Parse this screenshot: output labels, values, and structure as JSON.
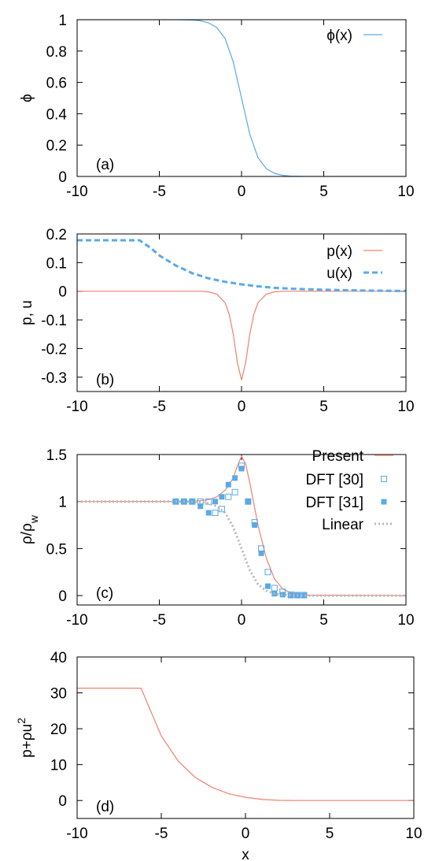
{
  "chart_data": [
    {
      "type": "line",
      "panel_label": "(a)",
      "xlabel": "",
      "ylabel": "ϕ",
      "xlim": [
        -10,
        10
      ],
      "ylim": [
        0,
        1
      ],
      "xticks": [
        "-10",
        "-5",
        "0",
        "5",
        "10"
      ],
      "yticks": [
        "0",
        "0.2",
        "0.4",
        "0.6",
        "0.8",
        "1"
      ],
      "legend_position": "top-right",
      "series": [
        {
          "name": "ϕ(x)",
          "style": "line",
          "color": "#5aaae6",
          "x": [
            -10,
            -4,
            -3,
            -2.5,
            -2,
            -1.5,
            -1,
            -0.5,
            0,
            0.5,
            1,
            1.5,
            2,
            2.5,
            3,
            4,
            10
          ],
          "y": [
            1,
            1,
            0.998,
            0.993,
            0.98,
            0.95,
            0.88,
            0.73,
            0.5,
            0.27,
            0.12,
            0.05,
            0.02,
            0.007,
            0.002,
            0,
            0
          ]
        }
      ]
    },
    {
      "type": "line",
      "panel_label": "(b)",
      "xlabel": "",
      "ylabel": "p, u",
      "xlim": [
        -10,
        10
      ],
      "ylim": [
        -0.35,
        0.2
      ],
      "xticks": [
        "-10",
        "-5",
        "0",
        "5",
        "10"
      ],
      "yticks": [
        "-0.3",
        "-0.2",
        "-0.1",
        "0",
        "0.1",
        "0.2"
      ],
      "legend_position": "top-right",
      "series": [
        {
          "name": "p(x)",
          "style": "line",
          "color": "#f08070",
          "x": [
            -10,
            -2.5,
            -2,
            -1.5,
            -1,
            -0.75,
            -0.5,
            -0.25,
            0,
            0.25,
            0.5,
            0.75,
            1,
            1.5,
            2,
            2.5,
            10
          ],
          "y": [
            0,
            0,
            -0.002,
            -0.01,
            -0.04,
            -0.08,
            -0.15,
            -0.25,
            -0.31,
            -0.25,
            -0.15,
            -0.08,
            -0.04,
            -0.01,
            -0.002,
            0,
            0
          ]
        },
        {
          "name": "u(x)",
          "style": "dashed",
          "color": "#5aaae6",
          "x": [
            -10,
            -6.2,
            -5.5,
            -5,
            -4,
            -3,
            -2,
            -1,
            0,
            1,
            2,
            3,
            4,
            6,
            8,
            10
          ],
          "y": [
            0.178,
            0.178,
            0.15,
            0.125,
            0.09,
            0.063,
            0.045,
            0.033,
            0.024,
            0.017,
            0.012,
            0.009,
            0.007,
            0.004,
            0.002,
            0.001
          ]
        }
      ]
    },
    {
      "type": "line",
      "panel_label": "(c)",
      "xlabel": "",
      "ylabel": "ρ/ρ",
      "ylabel_subscript": "w",
      "xlim": [
        -10,
        10
      ],
      "ylim": [
        -0.1,
        1.5
      ],
      "xticks": [
        "-10",
        "-5",
        "0",
        "5",
        "10"
      ],
      "yticks": [
        "0",
        "0.5",
        "1",
        "1.5"
      ],
      "legend_position": "top-right",
      "series": [
        {
          "name": "Present",
          "style": "line",
          "color": "#f08070",
          "x": [
            -10,
            -3,
            -2,
            -1.5,
            -1,
            -0.5,
            -0.25,
            0,
            0.25,
            0.5,
            1,
            1.5,
            2,
            2.5,
            3,
            4,
            10
          ],
          "y": [
            1,
            1,
            1.02,
            1.05,
            1.12,
            1.25,
            1.38,
            1.48,
            1.4,
            1.2,
            0.75,
            0.4,
            0.18,
            0.07,
            0.03,
            0.005,
            0
          ]
        },
        {
          "name": "DFT [30]",
          "style": "open-square",
          "color": "#5aaae6",
          "x": [
            -4,
            -3.5,
            -3,
            -2.5,
            -2,
            -1.6,
            -1.2,
            -0.8,
            -0.4,
            0,
            0.4,
            0.8,
            1.2,
            1.6,
            2,
            2.5,
            3,
            3.4,
            3.8
          ],
          "y": [
            1,
            1,
            1,
            1,
            1,
            0.88,
            0.92,
            1.05,
            1.1,
            1.38,
            1.0,
            0.78,
            0.5,
            0.25,
            0.08,
            0.04,
            0.01,
            0.005,
            0.005
          ]
        },
        {
          "name": "DFT [31]",
          "style": "filled-square",
          "color": "#5aaae6",
          "x": [
            -4,
            -3.5,
            -3,
            -2.5,
            -2,
            -1.6,
            -1.2,
            -0.8,
            -0.4,
            0,
            0.4,
            0.8,
            1.2,
            1.6,
            2,
            2.5,
            3,
            3.4,
            3.8
          ],
          "y": [
            1,
            1,
            1,
            0.95,
            0.88,
            1.0,
            1.05,
            1.18,
            1.25,
            1.35,
            1.0,
            0.75,
            0.45,
            0.1,
            0.02,
            0.01,
            0,
            0,
            0
          ]
        },
        {
          "name": "Linear",
          "style": "dotted",
          "color": "#b8b8b8",
          "x": [
            -10,
            -4,
            -3,
            -2.5,
            -2,
            -1.5,
            -1,
            -0.5,
            0,
            0.5,
            1,
            1.5,
            2,
            2.5,
            3,
            4,
            10
          ],
          "y": [
            1,
            1,
            0.998,
            0.993,
            0.98,
            0.95,
            0.88,
            0.73,
            0.5,
            0.27,
            0.12,
            0.05,
            0.02,
            0.007,
            0.002,
            0,
            0
          ]
        }
      ]
    },
    {
      "type": "line",
      "panel_label": "(d)",
      "xlabel": "x",
      "ylabel": "p+ρu",
      "ylabel_superscript": "2",
      "xlim": [
        -10,
        10
      ],
      "ylim": [
        -5,
        40
      ],
      "xticks": [
        "-10",
        "-5",
        "0",
        "5",
        "10"
      ],
      "yticks": [
        "0",
        "10",
        "20",
        "30",
        "40"
      ],
      "series": [
        {
          "style": "line",
          "color": "#f08070",
          "x": [
            -10,
            -6.2,
            -5.5,
            -5,
            -4,
            -3,
            -2,
            -1,
            0,
            1,
            2,
            3,
            4,
            6,
            8,
            10
          ],
          "y": [
            31.3,
            31.3,
            23.5,
            18,
            11,
            6.5,
            3.7,
            1.9,
            0.9,
            0.3,
            0.05,
            0,
            0,
            0,
            0,
            0
          ]
        }
      ]
    }
  ]
}
